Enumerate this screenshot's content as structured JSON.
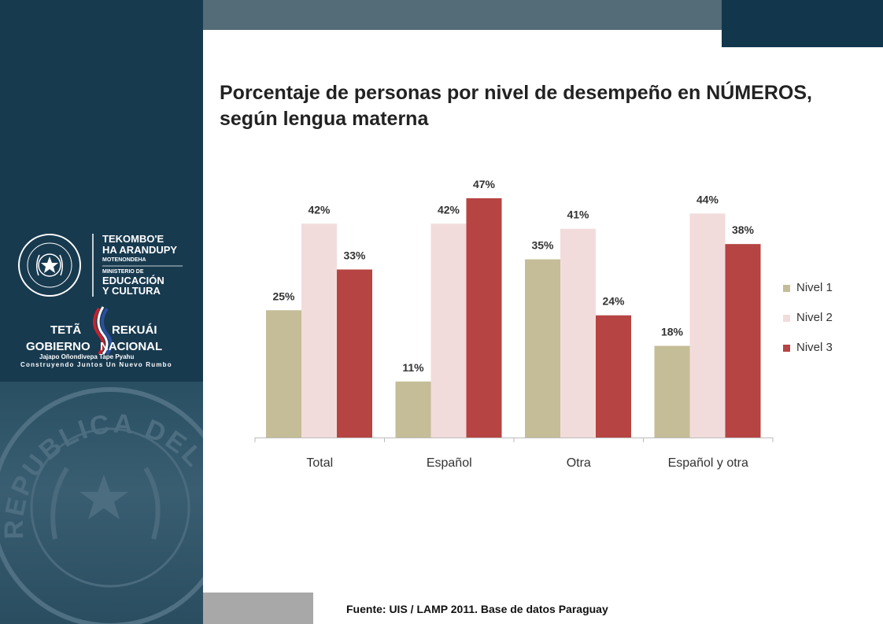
{
  "title": "Porcentaje de personas por nivel de desempeño en NÚMEROS, según lengua materna",
  "source": "Fuente:  UIS / LAMP 2011. Base de datos Paraguay",
  "logos": {
    "seal_text": "REPUBLICA DEL PARAGUAY",
    "ministry_line1": "TEKOMBO'E",
    "ministry_line2": "HA ARANDUPY",
    "ministry_line3": "MOTENONDEHA",
    "ministry_line4": "MINISTERIO DE",
    "ministry_line5": "EDUCACIÓN",
    "ministry_line6": "Y CULTURA",
    "gov_line1a": "TETÃ",
    "gov_line1b": "REKUÁI",
    "gov_line2a": "GOBIERNO",
    "gov_line2b": "NACIONAL",
    "gov_line3": "Jajapo Oñondivepa Tape Pyahu",
    "gov_line4": "Construyendo Juntos Un Nuevo Rumbo",
    "watermark_text": "REPUBLICA DEL PARAGUAY"
  },
  "colors": {
    "sidebar": "#183a4f",
    "nivel1": "#c4bd97",
    "nivel2": "#f2dcdb",
    "nivel3": "#b64442"
  },
  "chart_data": {
    "type": "bar",
    "categories": [
      "Total",
      "Español",
      "Otra",
      "Español y otra"
    ],
    "series": [
      {
        "name": "Nivel 1",
        "values": [
          25,
          11,
          35,
          18
        ],
        "labels": [
          "25%",
          "11%",
          "35%",
          "18%"
        ]
      },
      {
        "name": "Nivel 2",
        "values": [
          42,
          42,
          41,
          44
        ],
        "labels": [
          "42%",
          "42%",
          "41%",
          "44%"
        ]
      },
      {
        "name": "Nivel 3",
        "values": [
          33,
          47,
          24,
          38
        ],
        "labels": [
          "33%",
          "47%",
          "24%",
          "38%"
        ]
      }
    ],
    "ylim": [
      0,
      52
    ],
    "grid": false,
    "legend_position": "right"
  }
}
